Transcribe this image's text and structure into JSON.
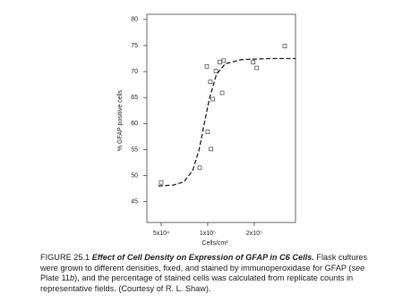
{
  "chart_data": {
    "type": "scatter",
    "xlabel": "Cells/cm²",
    "ylabel": "% GFAP positive cells",
    "xscale": "log",
    "xlim": [
      40400,
      370000
    ],
    "ylim": [
      41,
      81
    ],
    "xticks": [
      {
        "value": 50000,
        "label": "5x10⁴"
      },
      {
        "value": 100000,
        "label": "1x10⁵"
      },
      {
        "value": 200000,
        "label": "2x10⁵"
      }
    ],
    "yticks": [
      45,
      50,
      55,
      60,
      65,
      70,
      75,
      80
    ],
    "color": "#222222",
    "points": {
      "x": [
        50000,
        88700,
        98700,
        104000,
        113000,
        100000,
        105000,
        108000,
        120000,
        124000,
        127000,
        197000,
        208000,
        315000
      ],
      "values": [
        48.7,
        51.5,
        71.0,
        68.0,
        70.1,
        58.4,
        55.1,
        64.7,
        71.8,
        65.9,
        72.1,
        71.8,
        70.7,
        74.9
      ]
    },
    "fit": {
      "x": [
        48000,
        60000,
        70000,
        80000,
        88000,
        95000,
        103000,
        114000,
        130000,
        166000,
        250000,
        370000
      ],
      "values": [
        48.0,
        48.2,
        48.8,
        51.0,
        55.0,
        60.0,
        65.0,
        69.5,
        71.5,
        72.3,
        72.5,
        72.5
      ]
    }
  },
  "caption": {
    "label": "FIGURE 25.1",
    "heading": "Effect of Cell Density on Expression of GFAP in C6 Cells.",
    "text1": "Flask cultures were grown to different densities, fixed, and stained by immunoperoxidase for GFAP (",
    "see": "see",
    "plate": "Plate 11",
    "b": "b",
    "text2": "), and the percentage of stained cells was calculated from replicate counts in representative fields. (Courtesy of R. L. Shaw)."
  }
}
